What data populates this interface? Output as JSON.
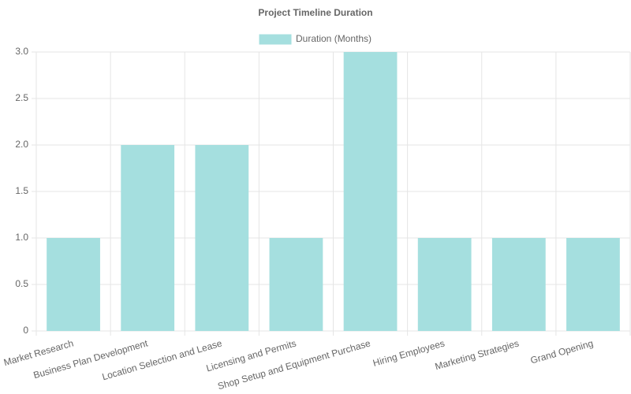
{
  "chart_data": {
    "type": "bar",
    "title": "Project Timeline Duration",
    "categories": [
      "Market Research",
      "Business Plan Development",
      "Location Selection and Lease",
      "Licensing and Permits",
      "Shop Setup and Equipment Purchase",
      "Hiring Employees",
      "Marketing Strategies",
      "Grand Opening"
    ],
    "series": [
      {
        "name": "Duration (Months)",
        "color": "#a5dfdf",
        "values": [
          1,
          2,
          2,
          1,
          3,
          1,
          1,
          1
        ]
      }
    ],
    "ylim": [
      0,
      3
    ],
    "yticks": [
      0,
      0.5,
      {
        "value": 1,
        "label": "1.0"
      },
      1.5,
      {
        "value": 2,
        "label": "2.0"
      },
      2.5,
      {
        "value": 3,
        "label": "3.0"
      }
    ],
    "grid": true,
    "legend": "top"
  }
}
